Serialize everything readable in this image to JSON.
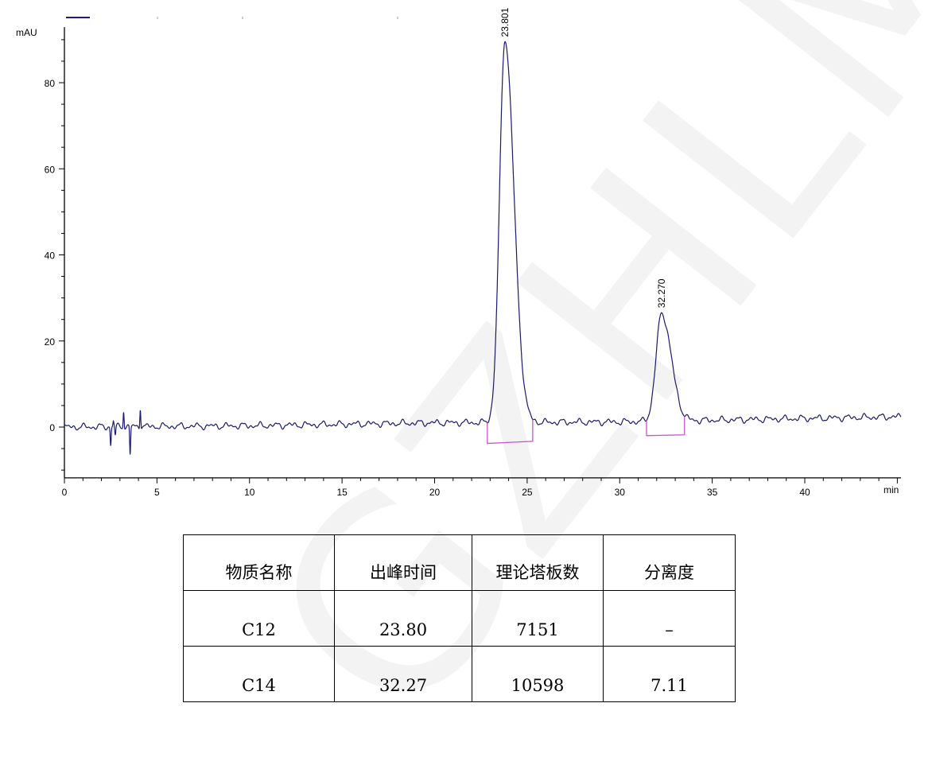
{
  "watermark": "GZHLM",
  "chart_data": {
    "type": "line",
    "ylabel": "mAU",
    "xlabel": "min",
    "xlim": [
      0,
      45.2
    ],
    "ylim": [
      -11.8,
      92.9
    ],
    "x_ticks": [
      "0",
      "5",
      "10",
      "15",
      "20",
      "25",
      "30",
      "35",
      "40"
    ],
    "y_ticks": [
      "0",
      "20",
      "40",
      "60",
      "80"
    ],
    "grid": false,
    "series_color": "#1a1a6e",
    "integration_color": "#d24fd2",
    "peaks": [
      {
        "label": "23.801",
        "rt": 23.8,
        "height": 89,
        "sigma": 0.36,
        "integration": {
          "start": [
            22.85,
            -3.8
          ],
          "end": [
            25.3,
            -3.3
          ]
        }
      },
      {
        "label": "32.270",
        "rt": 32.27,
        "height": 25,
        "sigma": 0.38,
        "integration": {
          "start": [
            31.45,
            -2.0
          ],
          "end": [
            33.5,
            -1.8
          ]
        }
      }
    ],
    "spikes": [
      {
        "x": 2.5,
        "y": -4.2
      },
      {
        "x": 2.65,
        "y": 1.2
      },
      {
        "x": 2.75,
        "y": -2.0
      },
      {
        "x": 3.2,
        "y": 3.9
      },
      {
        "x": 3.55,
        "y": -6.5
      },
      {
        "x": 4.1,
        "y": 4.7
      }
    ],
    "baseline": [
      [
        0,
        0
      ],
      [
        10,
        0.3
      ],
      [
        20,
        1.0
      ],
      [
        30,
        1.2
      ],
      [
        45,
        2.4
      ]
    ]
  },
  "table": {
    "headers": [
      "物质名称",
      "出峰时间",
      "理论塔板数",
      "分离度"
    ],
    "rows": [
      [
        "C12",
        "23.80",
        "7151",
        "–"
      ],
      [
        "C14",
        "32.27",
        "10598",
        "7.11"
      ]
    ]
  }
}
